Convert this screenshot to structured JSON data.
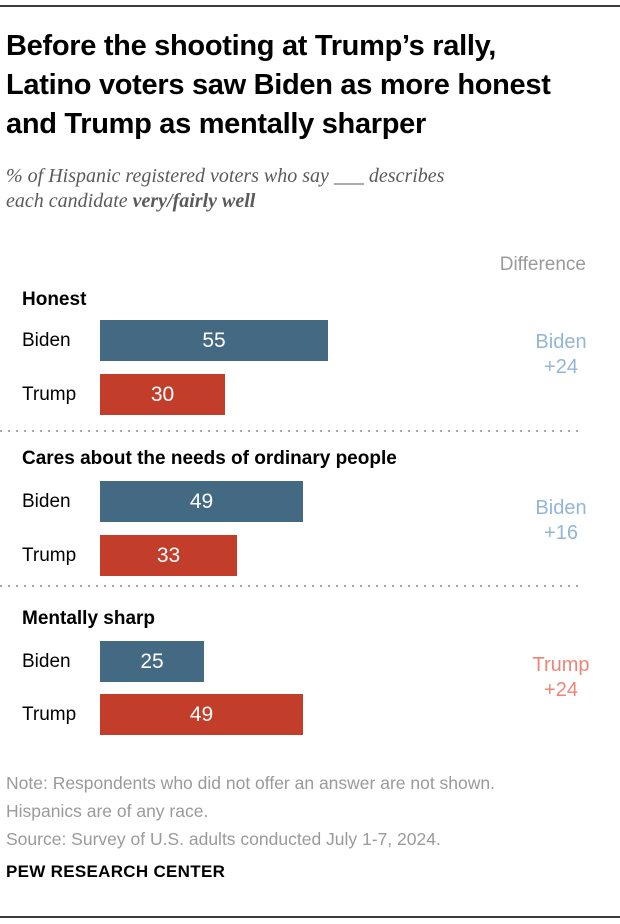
{
  "header": {
    "title_lines": [
      "Before the shooting at Trump’s rally,",
      "Latino voters saw Biden as more honest",
      "and Trump as mentally sharper"
    ],
    "subtitle_line1": "% of Hispanic registered voters who say ___ describes",
    "subtitle_line2_regular": "each candidate ",
    "subtitle_line2_bold": "very/fairly well"
  },
  "chart_data": {
    "type": "bar",
    "orientation": "horizontal",
    "title": "Before the shooting at Trump’s rally, Latino voters saw Biden as more honest and Trump as mentally sharper",
    "subtitle": "% of Hispanic registered voters who say ___ describes each candidate very/fairly well",
    "difference_column_label": "Difference",
    "series_names": [
      "Biden",
      "Trump"
    ],
    "xlim": [
      0,
      100
    ],
    "grid": false,
    "colors": {
      "biden_bar": "#436983",
      "trump_bar": "#c33d2b",
      "biden_diff_text": "#92b6d5",
      "trump_diff_text": "#ed8576",
      "value_label_text": "#ffffff"
    },
    "sections": [
      {
        "trait": "Honest",
        "biden": 55,
        "trump": 30,
        "diff_winner": "Biden",
        "diff_value": "+24"
      },
      {
        "trait": "Cares about the needs of ordinary people",
        "biden": 49,
        "trump": 33,
        "diff_winner": "Biden",
        "diff_value": "+16"
      },
      {
        "trait": "Mentally sharp",
        "biden": 25,
        "trump": 49,
        "diff_winner": "Trump",
        "diff_value": "+24"
      }
    ]
  },
  "footer": {
    "note_lines": [
      "Note: Respondents who did not offer an answer are not shown.",
      "Hispanics are of any race.",
      "Source: Survey of U.S. adults conducted July 1-7, 2024."
    ],
    "brand": "PEW RESEARCH CENTER"
  }
}
